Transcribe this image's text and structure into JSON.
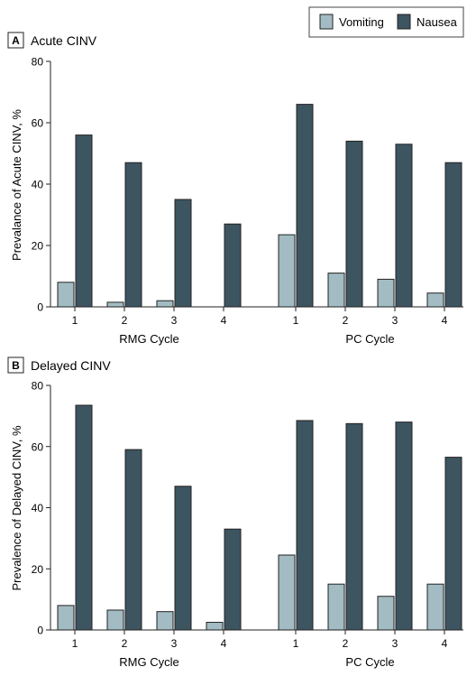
{
  "legend": {
    "items": [
      {
        "label": "Vomiting",
        "color": "#a3bcc3"
      },
      {
        "label": "Nausea",
        "color": "#3d5461"
      }
    ],
    "position": "top-right"
  },
  "chart_data": [
    {
      "type": "bar",
      "panel_letter": "A",
      "title": "Acute CINV",
      "ylabel": "Prevalance of Acute CINV, %",
      "ylim": [
        0,
        80
      ],
      "yticks": [
        0,
        20,
        40,
        60,
        80
      ],
      "grid": false,
      "groups": [
        {
          "label": "RMG Cycle",
          "categories": [
            "1",
            "2",
            "3",
            "4"
          ],
          "series": [
            {
              "name": "Vomiting",
              "values": [
                8,
                1.5,
                2,
                0
              ]
            },
            {
              "name": "Nausea",
              "values": [
                56,
                47,
                35,
                27
              ]
            }
          ]
        },
        {
          "label": "PC Cycle",
          "categories": [
            "1",
            "2",
            "3",
            "4"
          ],
          "series": [
            {
              "name": "Vomiting",
              "values": [
                23.5,
                11,
                9,
                4.5
              ]
            },
            {
              "name": "Nausea",
              "values": [
                66,
                54,
                53,
                47
              ]
            }
          ]
        }
      ]
    },
    {
      "type": "bar",
      "panel_letter": "B",
      "title": "Delayed CINV",
      "ylabel": "Prevalence of Delayed CINV, %",
      "ylim": [
        0,
        80
      ],
      "yticks": [
        0,
        20,
        40,
        60,
        80
      ],
      "grid": false,
      "groups": [
        {
          "label": "RMG Cycle",
          "categories": [
            "1",
            "2",
            "3",
            "4"
          ],
          "series": [
            {
              "name": "Vomiting",
              "values": [
                8,
                6.5,
                6,
                2.5
              ]
            },
            {
              "name": "Nausea",
              "values": [
                73.5,
                59,
                47,
                33
              ]
            }
          ]
        },
        {
          "label": "PC Cycle",
          "categories": [
            "1",
            "2",
            "3",
            "4"
          ],
          "series": [
            {
              "name": "Vomiting",
              "values": [
                24.5,
                15,
                11,
                15
              ]
            },
            {
              "name": "Nausea",
              "values": [
                68.5,
                67.5,
                68,
                56.5
              ]
            }
          ]
        }
      ]
    }
  ]
}
